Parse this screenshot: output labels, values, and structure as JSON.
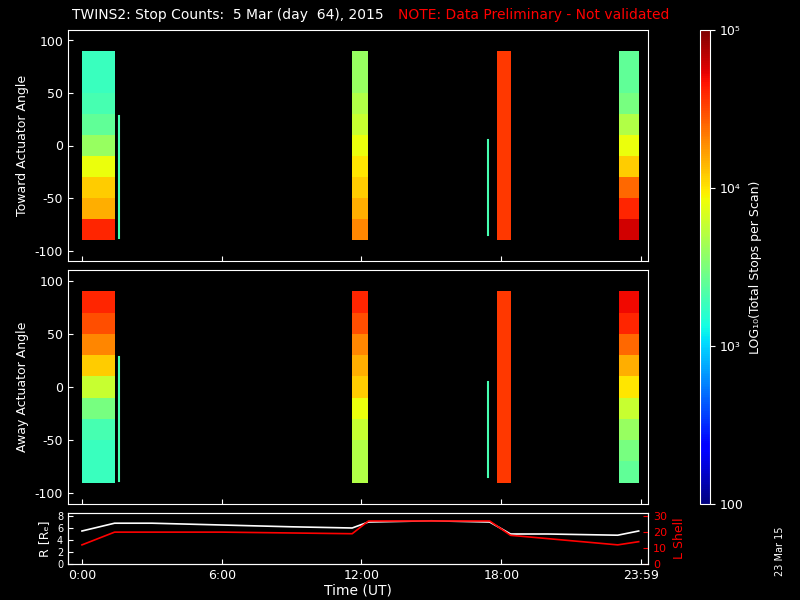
{
  "title": "TWINS2: Stop Counts:  5 Mar (day  64), 2015",
  "note": "NOTE: Data Preliminary - Not validated",
  "date_stamp": "23 Mar 15",
  "colorbar": {
    "label": "LOG₁₀(Total Stops per Scan)",
    "log": true,
    "lim": [
      100,
      100000
    ],
    "ticks": [
      {
        "value": 100,
        "label": "100"
      },
      {
        "value": 1000,
        "label": "10³"
      },
      {
        "value": 10000,
        "label": "10⁴"
      },
      {
        "value": 100000,
        "label": "10⁵"
      }
    ]
  },
  "chart_data": [
    {
      "type": "heatmap",
      "y_label": "Toward Actuator Angle",
      "xlim": [
        -0.6,
        24.3
      ],
      "xticks": [
        0,
        6,
        12,
        18,
        23.983
      ],
      "ylim": [
        -110,
        110
      ],
      "yticks": [
        -100,
        -50,
        0,
        50,
        100
      ],
      "tick_labels": "y",
      "y_edges": [
        -90,
        -70,
        -50,
        -30,
        -10,
        10,
        30,
        50,
        70,
        90
      ],
      "blocks": [
        {
          "start": 0.0,
          "end": 1.4,
          "values": [
            40000,
            15000,
            12000,
            8000,
            4000,
            2500,
            2000,
            1800,
            1800
          ]
        },
        {
          "start": 11.6,
          "end": 12.3,
          "values": [
            20000,
            15000,
            12000,
            10000,
            8000,
            6000,
            5000,
            4000,
            4000
          ]
        },
        {
          "start": 17.8,
          "end": 18.4,
          "values": [
            35000,
            35000,
            35000,
            35000,
            35000,
            35000,
            35000,
            35000,
            35000
          ]
        },
        {
          "start": 23.05,
          "end": 23.9,
          "values": [
            60000,
            40000,
            25000,
            12000,
            8000,
            5000,
            3000,
            2500,
            2500
          ]
        }
      ],
      "lines": [
        {
          "x": 1.57,
          "y": [
            -88,
            28
          ],
          "value": 2000
        },
        {
          "x": 17.45,
          "y": [
            -85,
            5
          ],
          "value": 2000
        }
      ]
    },
    {
      "type": "heatmap",
      "y_label": "Away Actuator Angle",
      "xlim": [
        -0.6,
        24.3
      ],
      "xticks": [
        0,
        6,
        12,
        18,
        23.983
      ],
      "ylim": [
        -110,
        110
      ],
      "yticks": [
        -100,
        -50,
        0,
        50,
        100
      ],
      "tick_labels": "y",
      "y_edges": [
        -90,
        -70,
        -50,
        -30,
        -10,
        10,
        30,
        50,
        70,
        90
      ],
      "blocks": [
        {
          "start": 0.0,
          "end": 1.4,
          "values": [
            1800,
            1800,
            2000,
            3000,
            6000,
            12000,
            20000,
            30000,
            40000
          ]
        },
        {
          "start": 11.6,
          "end": 12.3,
          "values": [
            5000,
            5000,
            6000,
            8000,
            12000,
            15000,
            20000,
            30000,
            40000
          ]
        },
        {
          "start": 17.8,
          "end": 18.4,
          "values": [
            35000,
            35000,
            35000,
            35000,
            35000,
            35000,
            35000,
            35000,
            35000
          ]
        },
        {
          "start": 23.05,
          "end": 23.9,
          "values": [
            2500,
            3000,
            4000,
            6000,
            10000,
            15000,
            25000,
            40000,
            50000
          ]
        }
      ],
      "lines": [
        {
          "x": 1.57,
          "y": [
            -88,
            28
          ],
          "value": 2000
        },
        {
          "x": 17.45,
          "y": [
            -85,
            5
          ],
          "value": 2000
        }
      ]
    },
    {
      "type": "line",
      "x_label": "Time (UT)",
      "y_label": "R [Rₑ]",
      "y2_label": "L Shell",
      "xlim": [
        -0.6,
        24.3
      ],
      "xticks": [
        {
          "value": 0,
          "label": "0:00"
        },
        {
          "value": 6,
          "label": "6:00"
        },
        {
          "value": 12,
          "label": "12:00"
        },
        {
          "value": 18,
          "label": "18:00"
        },
        {
          "value": 23.983,
          "label": "23:59"
        }
      ],
      "ylim": [
        0,
        8.5
      ],
      "yticks": [
        0,
        2,
        4,
        6,
        8
      ],
      "y2lim": [
        0,
        32
      ],
      "y2ticks": [
        0,
        10,
        20,
        30
      ],
      "series": [
        {
          "color": "#ffffff",
          "axis": "y",
          "x": [
            0,
            1.4,
            3,
            6,
            9,
            11.6,
            12.3,
            15,
            17.5,
            18.4,
            20,
            23,
            23.9
          ],
          "values": [
            5.5,
            6.8,
            6.8,
            6.5,
            6.2,
            6.0,
            7.0,
            7.2,
            7.0,
            5.0,
            5.0,
            4.8,
            5.5
          ]
        },
        {
          "color": "#ff0000",
          "axis": "y2",
          "x": [
            0,
            1.4,
            6,
            11.6,
            12.3,
            17.5,
            18.4,
            23,
            23.9
          ],
          "values": [
            12,
            20,
            20,
            19,
            27,
            27,
            18,
            12,
            14
          ]
        }
      ]
    }
  ]
}
